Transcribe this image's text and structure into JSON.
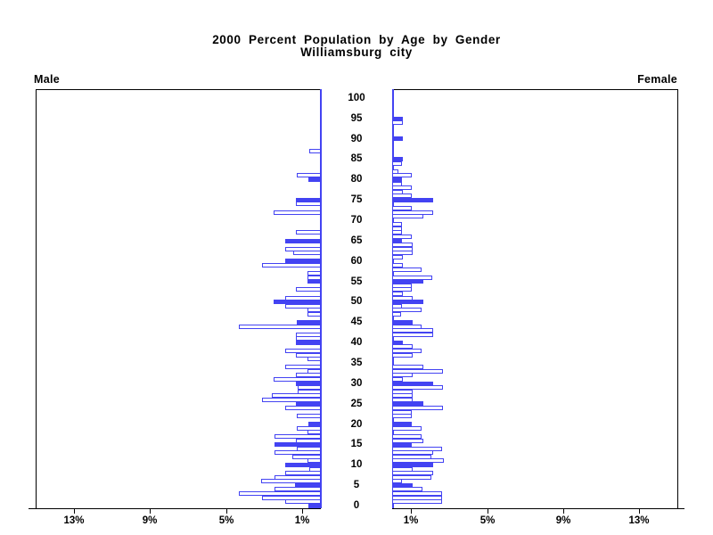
{
  "title": {
    "line1": "2000 Percent Population by Age by Gender",
    "line2": "Williamsburg city"
  },
  "panel_labels": {
    "male": "Male",
    "female": "Female"
  },
  "chart_data": {
    "type": "bar",
    "subtype": "population-pyramid",
    "title": "2000 Percent Population by Age by Gender",
    "subtitle": "Williamsburg city",
    "unit": "percent of total population",
    "age_min": 0,
    "age_max": 100,
    "age_tick_step": 5,
    "age_tick_labels": [
      "0",
      "5",
      "10",
      "15",
      "20",
      "25",
      "30",
      "35",
      "40",
      "45",
      "50",
      "55",
      "60",
      "65",
      "70",
      "75",
      "80",
      "85",
      "90",
      "95",
      "100"
    ],
    "axis_max_pct": 15,
    "grid": false,
    "filled_bar_rule": "bars for ages that are multiples of 5 are solid blue; all other ages are blue-outlined white bars",
    "male_axis_ticks": [
      {
        "label": "13%",
        "pct": 13
      },
      {
        "label": "9%",
        "pct": 9
      },
      {
        "label": "5%",
        "pct": 5
      },
      {
        "label": "1%",
        "pct": 1
      }
    ],
    "female_axis_ticks": [
      {
        "label": "1%",
        "pct": 1
      },
      {
        "label": "5%",
        "pct": 5
      },
      {
        "label": "9%",
        "pct": 9
      },
      {
        "label": "13%",
        "pct": 13
      }
    ],
    "series": [
      {
        "name": "Male",
        "side": "left",
        "values_by_age": [
          0.66,
          1.9,
          3.1,
          4.33,
          2.45,
          1.35,
          3.13,
          2.43,
          1.88,
          0.63,
          1.9,
          0.7,
          1.5,
          2.45,
          1.25,
          2.45,
          1.3,
          2.45,
          0.73,
          1.25,
          0.67,
          0,
          1.25,
          0,
          1.9,
          1.3,
          3.1,
          2.6,
          1.2,
          1.2,
          1.3,
          2.5,
          1.3,
          0.7,
          1.9,
          0,
          0.7,
          1.3,
          1.9,
          0,
          1.3,
          1.3,
          1.3,
          0,
          4.33,
          1.25,
          0,
          0.7,
          0.7,
          1.9,
          2.5,
          1.9,
          0,
          1.3,
          0,
          0.7,
          0.7,
          0.7,
          0,
          3.1,
          1.9,
          0,
          1.45,
          1.9,
          0,
          1.9,
          0,
          1.3,
          0,
          0,
          0,
          0,
          2.5,
          0,
          1.3,
          1.3,
          0,
          0,
          0,
          0,
          0.66,
          1.28,
          0,
          0,
          0,
          0,
          0,
          0.6,
          0,
          0,
          0,
          0,
          0,
          0,
          0,
          0,
          0,
          0,
          0,
          0,
          0
        ]
      },
      {
        "name": "Female",
        "side": "right",
        "values_by_age": [
          0,
          2.65,
          2.65,
          2.65,
          1.6,
          1.1,
          0.52,
          2.08,
          2.15,
          1.1,
          2.15,
          2.72,
          2.08,
          2.15,
          2.62,
          1.05,
          1.62,
          1.57,
          0,
          1.57,
          1.05,
          0,
          1.02,
          1.02,
          2.67,
          1.62,
          1.1,
          1.1,
          1.1,
          2.67,
          2.15,
          0.55,
          1.1,
          2.67,
          1.62,
          0,
          0,
          1.07,
          1.57,
          1.07,
          0.55,
          0,
          2.15,
          2.15,
          1.57,
          1.1,
          0,
          0.47,
          1.57,
          0.52,
          1.62,
          1.07,
          0.58,
          1.02,
          1.02,
          1.62,
          2.12,
          0,
          1.57,
          0.55,
          0,
          0.55,
          1.07,
          1.07,
          1.07,
          0.52,
          1.02,
          0.52,
          0.52,
          0.52,
          0,
          1.62,
          2.15,
          1.02,
          0,
          2.15,
          1.02,
          0.58,
          1.02,
          0.52,
          0.52,
          1.02,
          0.31,
          0,
          0.52,
          0.58,
          0,
          0,
          0,
          0,
          0.58,
          0,
          0,
          0,
          0.58,
          0.58,
          0,
          0,
          0,
          0,
          0
        ]
      }
    ],
    "colors": {
      "bar": "#4343f2",
      "axis": "#000000",
      "background": "#ffffff"
    }
  }
}
